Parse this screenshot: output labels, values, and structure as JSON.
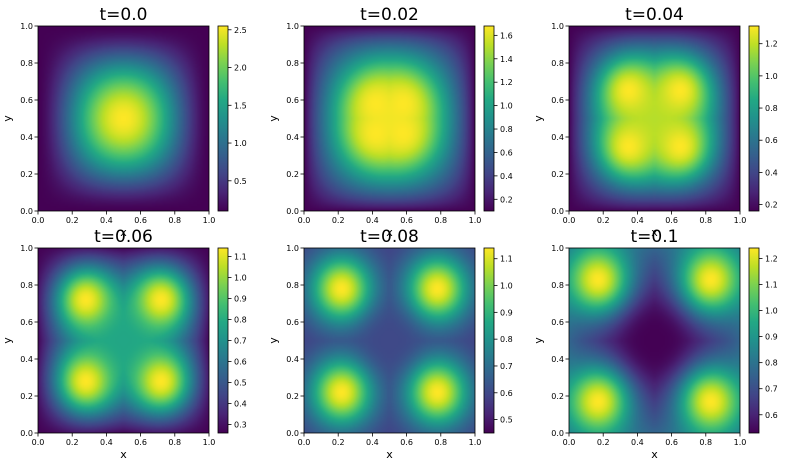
{
  "chart_data": [
    {
      "type": "heatmap",
      "title": "t=0.0",
      "xlabel": "x",
      "ylabel": "y",
      "xlim": [
        0.0,
        1.0
      ],
      "ylim": [
        0.0,
        1.0
      ],
      "xticks": [
        "0.0",
        "0.2",
        "0.4",
        "0.6",
        "0.8",
        "1.0"
      ],
      "yticks": [
        "0.0",
        "0.2",
        "0.4",
        "0.6",
        "0.8",
        "1.0"
      ],
      "colormap": "viridis",
      "colorbar_range": [
        0.1,
        2.55
      ],
      "colorbar_ticks": [
        0.5,
        1.0,
        1.5,
        2.0,
        2.5
      ],
      "colorbar_ticklabels": [
        "0.5",
        "1.0",
        "1.5",
        "2.0",
        "2.5"
      ],
      "peaks": [
        [
          0.5,
          0.5
        ]
      ],
      "peak_value": 2.55,
      "center_value": 2.55,
      "edge_value": 0.1
    },
    {
      "type": "heatmap",
      "title": "t=0.02",
      "xlabel": "x",
      "ylabel": "y",
      "xlim": [
        0.0,
        1.0
      ],
      "ylim": [
        0.0,
        1.0
      ],
      "xticks": [
        "0.0",
        "0.2",
        "0.4",
        "0.6",
        "0.8",
        "1.0"
      ],
      "yticks": [
        "0.0",
        "0.2",
        "0.4",
        "0.6",
        "0.8",
        "1.0"
      ],
      "colormap": "viridis",
      "colorbar_range": [
        0.1,
        1.68
      ],
      "colorbar_ticks": [
        0.2,
        0.4,
        0.6,
        0.8,
        1.0,
        1.2,
        1.4,
        1.6
      ],
      "colorbar_ticklabels": [
        "0.2",
        "0.4",
        "0.6",
        "0.8",
        "1.0",
        "1.2",
        "1.4",
        "1.6"
      ],
      "peaks": [
        [
          0.42,
          0.42
        ],
        [
          0.58,
          0.42
        ],
        [
          0.42,
          0.58
        ],
        [
          0.58,
          0.58
        ]
      ],
      "peak_value": 1.68,
      "center_value": 1.64,
      "edge_value": 0.1
    },
    {
      "type": "heatmap",
      "title": "t=0.04",
      "xlabel": "x",
      "ylabel": "y",
      "xlim": [
        0.0,
        1.0
      ],
      "ylim": [
        0.0,
        1.0
      ],
      "xticks": [
        "0.0",
        "0.2",
        "0.4",
        "0.6",
        "0.8",
        "1.0"
      ],
      "yticks": [
        "0.0",
        "0.2",
        "0.4",
        "0.6",
        "0.8",
        "1.0"
      ],
      "colormap": "viridis",
      "colorbar_range": [
        0.16,
        1.31
      ],
      "colorbar_ticks": [
        0.2,
        0.4,
        0.6,
        0.8,
        1.0,
        1.2
      ],
      "colorbar_ticklabels": [
        "0.2",
        "0.4",
        "0.6",
        "0.8",
        "1.0",
        "1.2"
      ],
      "peaks": [
        [
          0.35,
          0.35
        ],
        [
          0.65,
          0.35
        ],
        [
          0.35,
          0.65
        ],
        [
          0.65,
          0.65
        ]
      ],
      "peak_value": 1.31,
      "center_value": 1.18,
      "edge_value": 0.16
    },
    {
      "type": "heatmap",
      "title": "t=0.06",
      "xlabel": "x",
      "ylabel": "y",
      "xlim": [
        0.0,
        1.0
      ],
      "ylim": [
        0.0,
        1.0
      ],
      "xticks": [
        "0.0",
        "0.2",
        "0.4",
        "0.6",
        "0.8",
        "1.0"
      ],
      "yticks": [
        "0.0",
        "0.2",
        "0.4",
        "0.6",
        "0.8",
        "1.0"
      ],
      "colormap": "viridis",
      "colorbar_range": [
        0.26,
        1.14
      ],
      "colorbar_ticks": [
        0.3,
        0.4,
        0.5,
        0.6,
        0.7,
        0.8,
        0.9,
        1.0,
        1.1
      ],
      "colorbar_ticklabels": [
        "0.3",
        "0.4",
        "0.5",
        "0.6",
        "0.7",
        "0.8",
        "0.9",
        "1.0",
        "1.1"
      ],
      "peaks": [
        [
          0.28,
          0.28
        ],
        [
          0.72,
          0.28
        ],
        [
          0.28,
          0.72
        ],
        [
          0.72,
          0.72
        ]
      ],
      "peak_value": 1.14,
      "center_value": 0.78,
      "edge_value": 0.26
    },
    {
      "type": "heatmap",
      "title": "t=0.08",
      "xlabel": "x",
      "ylabel": "y",
      "xlim": [
        0.0,
        1.0
      ],
      "ylim": [
        0.0,
        1.0
      ],
      "xticks": [
        "0.0",
        "0.2",
        "0.4",
        "0.6",
        "0.8",
        "1.0"
      ],
      "yticks": [
        "0.0",
        "0.2",
        "0.4",
        "0.6",
        "0.8",
        "1.0"
      ],
      "colormap": "viridis",
      "colorbar_range": [
        0.45,
        1.14
      ],
      "colorbar_ticks": [
        0.5,
        0.6,
        0.7,
        0.8,
        0.9,
        1.0,
        1.1
      ],
      "colorbar_ticklabels": [
        "0.5",
        "0.6",
        "0.7",
        "0.8",
        "0.9",
        "1.0",
        "1.1"
      ],
      "peaks": [
        [
          0.22,
          0.22
        ],
        [
          0.78,
          0.22
        ],
        [
          0.22,
          0.78
        ],
        [
          0.78,
          0.78
        ]
      ],
      "peak_value": 1.14,
      "center_value": 0.6,
      "edge_value": 0.58
    },
    {
      "type": "heatmap",
      "title": "t=0.1",
      "xlabel": "x",
      "ylabel": "y",
      "xlim": [
        0.0,
        1.0
      ],
      "ylim": [
        0.0,
        1.0
      ],
      "xticks": [
        "0.0",
        "0.2",
        "0.4",
        "0.6",
        "0.8",
        "1.0"
      ],
      "yticks": [
        "0.0",
        "0.2",
        "0.4",
        "0.6",
        "0.8",
        "1.0"
      ],
      "colormap": "viridis",
      "colorbar_range": [
        0.53,
        1.24
      ],
      "colorbar_ticks": [
        0.6,
        0.7,
        0.8,
        0.9,
        1.0,
        1.1,
        1.2
      ],
      "colorbar_ticklabels": [
        "0.6",
        "0.7",
        "0.8",
        "0.9",
        "1.0",
        "1.1",
        "1.2"
      ],
      "peaks": [
        [
          0.17,
          0.17
        ],
        [
          0.83,
          0.17
        ],
        [
          0.17,
          0.83
        ],
        [
          0.83,
          0.83
        ]
      ],
      "peak_value": 1.24,
      "center_value": 0.53,
      "edge_value": 0.75
    }
  ]
}
